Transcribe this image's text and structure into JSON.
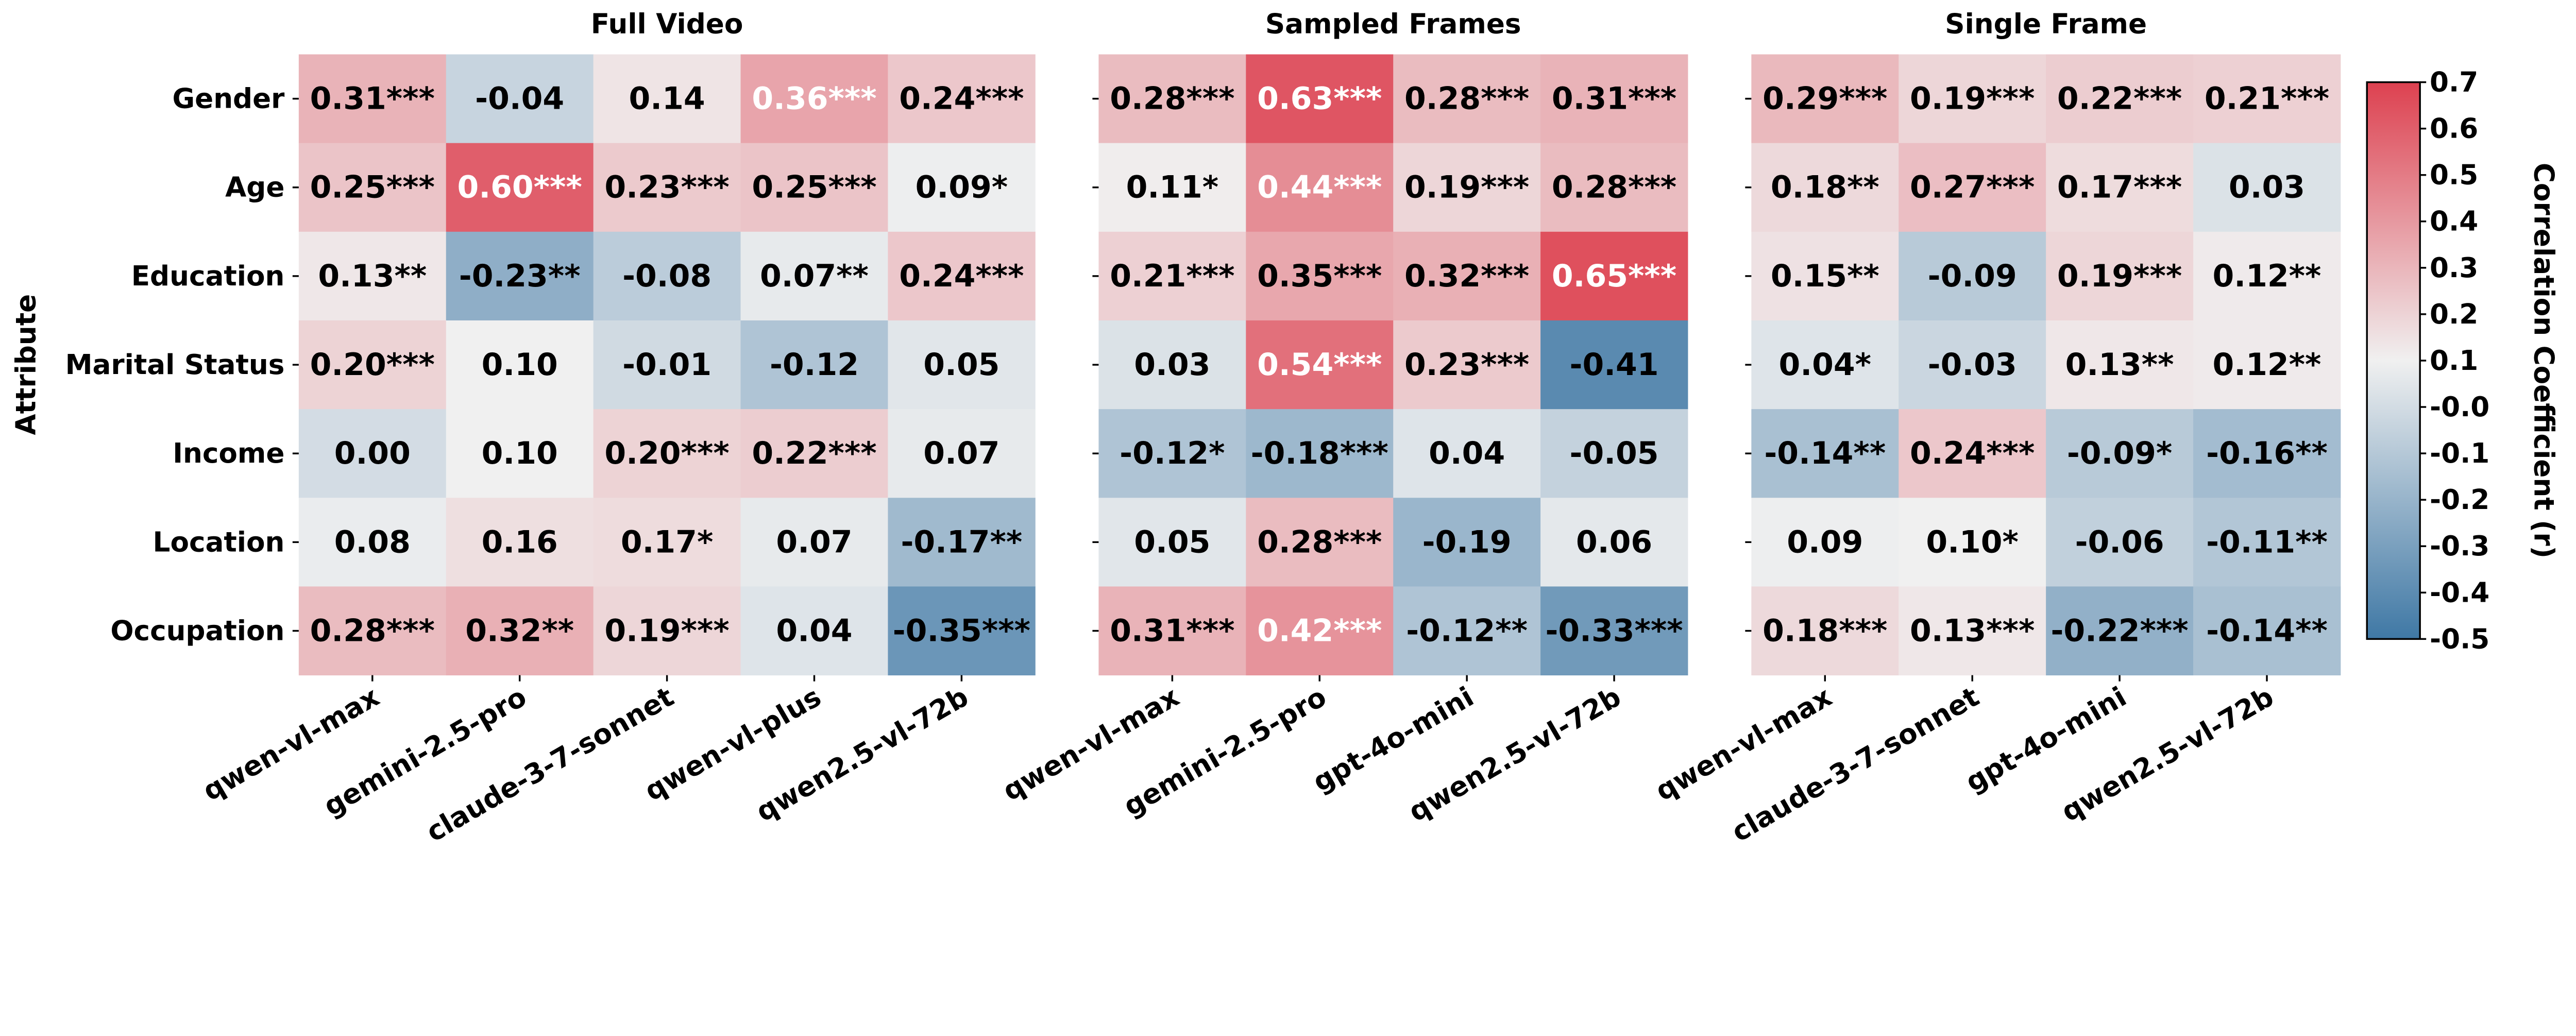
{
  "chart_data": {
    "type": "heatmap",
    "ylabel": "Attribute",
    "rows": [
      "Gender",
      "Age",
      "Education",
      "Marital Status",
      "Income",
      "Location",
      "Occupation"
    ],
    "colorbar": {
      "label": "Correlation Coefficient (r)",
      "range": [
        -0.5,
        0.7
      ],
      "center": 0.1,
      "ticks": [
        "0.7",
        "0.6",
        "0.5",
        "0.4",
        "0.3",
        "0.2",
        "0.1",
        "-0.0",
        "-0.1",
        "-0.2",
        "-0.3",
        "-0.4",
        "-0.5"
      ],
      "colors": {
        "low": "#3f78a5",
        "mid": "#f0f0f0",
        "high": "#dd4150"
      }
    },
    "panels": [
      {
        "title": "Full Video",
        "columns": [
          "qwen-vl-max",
          "gemini-2.5-pro",
          "claude-3-7-sonnet",
          "qwen-vl-plus",
          "qwen2.5-vl-72b"
        ],
        "values": [
          [
            0.31,
            -0.04,
            0.14,
            0.36,
            0.24
          ],
          [
            0.25,
            0.6,
            0.23,
            0.25,
            0.09
          ],
          [
            0.13,
            -0.23,
            -0.08,
            0.07,
            0.24
          ],
          [
            0.2,
            0.1,
            -0.01,
            -0.12,
            0.05
          ],
          [
            0.0,
            0.1,
            0.2,
            0.22,
            0.07
          ],
          [
            0.08,
            0.16,
            0.17,
            0.07,
            -0.17
          ],
          [
            0.28,
            0.32,
            0.19,
            0.04,
            -0.35
          ]
        ],
        "labels": [
          [
            "0.31***",
            "-0.04",
            "0.14",
            "0.36***",
            "0.24***"
          ],
          [
            "0.25***",
            "0.60***",
            "0.23***",
            "0.25***",
            "0.09*"
          ],
          [
            "0.13**",
            "-0.23**",
            "-0.08",
            "0.07**",
            "0.24***"
          ],
          [
            "0.20***",
            "0.10",
            "-0.01",
            "-0.12",
            "0.05"
          ],
          [
            "0.00",
            "0.10",
            "0.20***",
            "0.22***",
            "0.07"
          ],
          [
            "0.08",
            "0.16",
            "0.17*",
            "0.07",
            "-0.17**"
          ],
          [
            "0.28***",
            "0.32**",
            "0.19***",
            "0.04",
            "-0.35***"
          ]
        ]
      },
      {
        "title": "Sampled Frames",
        "columns": [
          "qwen-vl-max",
          "gemini-2.5-pro",
          "gpt-4o-mini",
          "qwen2.5-vl-72b"
        ],
        "values": [
          [
            0.28,
            0.63,
            0.28,
            0.31
          ],
          [
            0.11,
            0.44,
            0.19,
            0.28
          ],
          [
            0.21,
            0.35,
            0.32,
            0.65
          ],
          [
            0.03,
            0.54,
            0.23,
            -0.41
          ],
          [
            -0.12,
            -0.18,
            0.04,
            -0.05
          ],
          [
            0.05,
            0.28,
            -0.19,
            0.06
          ],
          [
            0.31,
            0.42,
            -0.12,
            -0.33
          ]
        ],
        "labels": [
          [
            "0.28***",
            "0.63***",
            "0.28***",
            "0.31***"
          ],
          [
            "0.11*",
            "0.44***",
            "0.19***",
            "0.28***"
          ],
          [
            "0.21***",
            "0.35***",
            "0.32***",
            "0.65***"
          ],
          [
            "0.03",
            "0.54***",
            "0.23***",
            "-0.41"
          ],
          [
            "-0.12*",
            "-0.18***",
            "0.04",
            "-0.05"
          ],
          [
            "0.05",
            "0.28***",
            "-0.19",
            "0.06"
          ],
          [
            "0.31***",
            "0.42***",
            "-0.12**",
            "-0.33***"
          ]
        ]
      },
      {
        "title": "Single Frame",
        "columns": [
          "qwen-vl-max",
          "claude-3-7-sonnet",
          "gpt-4o-mini",
          "qwen2.5-vl-72b"
        ],
        "values": [
          [
            0.29,
            0.19,
            0.22,
            0.21
          ],
          [
            0.18,
            0.27,
            0.17,
            0.03
          ],
          [
            0.15,
            -0.09,
            0.19,
            0.12
          ],
          [
            0.04,
            -0.03,
            0.13,
            0.12
          ],
          [
            -0.14,
            0.24,
            -0.09,
            -0.16
          ],
          [
            0.09,
            0.1,
            -0.06,
            -0.11
          ],
          [
            0.18,
            0.13,
            -0.22,
            -0.14
          ]
        ],
        "labels": [
          [
            "0.29***",
            "0.19***",
            "0.22***",
            "0.21***"
          ],
          [
            "0.18**",
            "0.27***",
            "0.17***",
            "0.03"
          ],
          [
            "0.15**",
            "-0.09",
            "0.19***",
            "0.12**"
          ],
          [
            "0.04*",
            "-0.03",
            "0.13**",
            "0.12**"
          ],
          [
            "-0.14**",
            "0.24***",
            "-0.09*",
            "-0.16**"
          ],
          [
            "0.09",
            "0.10*",
            "-0.06",
            "-0.11**"
          ],
          [
            "0.18***",
            "0.13***",
            "-0.22***",
            "-0.14**"
          ]
        ]
      }
    ]
  }
}
